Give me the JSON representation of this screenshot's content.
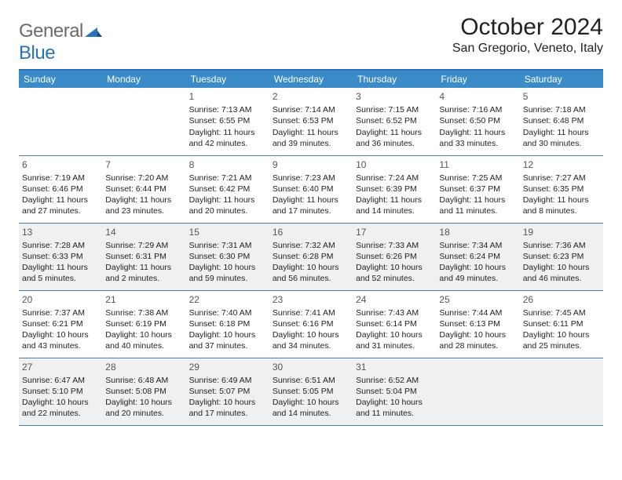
{
  "brand": {
    "part1": "General",
    "part2": "Blue",
    "color_gray": "#6b6b6b",
    "color_blue": "#2873b8"
  },
  "header": {
    "month_title": "October 2024",
    "location": "San Gregorio, Veneto, Italy"
  },
  "calendar": {
    "header_bg": "#3b8bc9",
    "header_fg": "#ffffff",
    "border_color": "#4a7fa8",
    "shaded_bg": "#eef0f2",
    "day_labels": [
      "Sunday",
      "Monday",
      "Tuesday",
      "Wednesday",
      "Thursday",
      "Friday",
      "Saturday"
    ],
    "weeks": [
      {
        "shaded": false,
        "days": [
          null,
          null,
          {
            "n": "1",
            "sr": "Sunrise: 7:13 AM",
            "ss": "Sunset: 6:55 PM",
            "dl": "Daylight: 11 hours and 42 minutes."
          },
          {
            "n": "2",
            "sr": "Sunrise: 7:14 AM",
            "ss": "Sunset: 6:53 PM",
            "dl": "Daylight: 11 hours and 39 minutes."
          },
          {
            "n": "3",
            "sr": "Sunrise: 7:15 AM",
            "ss": "Sunset: 6:52 PM",
            "dl": "Daylight: 11 hours and 36 minutes."
          },
          {
            "n": "4",
            "sr": "Sunrise: 7:16 AM",
            "ss": "Sunset: 6:50 PM",
            "dl": "Daylight: 11 hours and 33 minutes."
          },
          {
            "n": "5",
            "sr": "Sunrise: 7:18 AM",
            "ss": "Sunset: 6:48 PM",
            "dl": "Daylight: 11 hours and 30 minutes."
          }
        ]
      },
      {
        "shaded": false,
        "days": [
          {
            "n": "6",
            "sr": "Sunrise: 7:19 AM",
            "ss": "Sunset: 6:46 PM",
            "dl": "Daylight: 11 hours and 27 minutes."
          },
          {
            "n": "7",
            "sr": "Sunrise: 7:20 AM",
            "ss": "Sunset: 6:44 PM",
            "dl": "Daylight: 11 hours and 23 minutes."
          },
          {
            "n": "8",
            "sr": "Sunrise: 7:21 AM",
            "ss": "Sunset: 6:42 PM",
            "dl": "Daylight: 11 hours and 20 minutes."
          },
          {
            "n": "9",
            "sr": "Sunrise: 7:23 AM",
            "ss": "Sunset: 6:40 PM",
            "dl": "Daylight: 11 hours and 17 minutes."
          },
          {
            "n": "10",
            "sr": "Sunrise: 7:24 AM",
            "ss": "Sunset: 6:39 PM",
            "dl": "Daylight: 11 hours and 14 minutes."
          },
          {
            "n": "11",
            "sr": "Sunrise: 7:25 AM",
            "ss": "Sunset: 6:37 PM",
            "dl": "Daylight: 11 hours and 11 minutes."
          },
          {
            "n": "12",
            "sr": "Sunrise: 7:27 AM",
            "ss": "Sunset: 6:35 PM",
            "dl": "Daylight: 11 hours and 8 minutes."
          }
        ]
      },
      {
        "shaded": true,
        "days": [
          {
            "n": "13",
            "sr": "Sunrise: 7:28 AM",
            "ss": "Sunset: 6:33 PM",
            "dl": "Daylight: 11 hours and 5 minutes."
          },
          {
            "n": "14",
            "sr": "Sunrise: 7:29 AM",
            "ss": "Sunset: 6:31 PM",
            "dl": "Daylight: 11 hours and 2 minutes."
          },
          {
            "n": "15",
            "sr": "Sunrise: 7:31 AM",
            "ss": "Sunset: 6:30 PM",
            "dl": "Daylight: 10 hours and 59 minutes."
          },
          {
            "n": "16",
            "sr": "Sunrise: 7:32 AM",
            "ss": "Sunset: 6:28 PM",
            "dl": "Daylight: 10 hours and 56 minutes."
          },
          {
            "n": "17",
            "sr": "Sunrise: 7:33 AM",
            "ss": "Sunset: 6:26 PM",
            "dl": "Daylight: 10 hours and 52 minutes."
          },
          {
            "n": "18",
            "sr": "Sunrise: 7:34 AM",
            "ss": "Sunset: 6:24 PM",
            "dl": "Daylight: 10 hours and 49 minutes."
          },
          {
            "n": "19",
            "sr": "Sunrise: 7:36 AM",
            "ss": "Sunset: 6:23 PM",
            "dl": "Daylight: 10 hours and 46 minutes."
          }
        ]
      },
      {
        "shaded": false,
        "days": [
          {
            "n": "20",
            "sr": "Sunrise: 7:37 AM",
            "ss": "Sunset: 6:21 PM",
            "dl": "Daylight: 10 hours and 43 minutes."
          },
          {
            "n": "21",
            "sr": "Sunrise: 7:38 AM",
            "ss": "Sunset: 6:19 PM",
            "dl": "Daylight: 10 hours and 40 minutes."
          },
          {
            "n": "22",
            "sr": "Sunrise: 7:40 AM",
            "ss": "Sunset: 6:18 PM",
            "dl": "Daylight: 10 hours and 37 minutes."
          },
          {
            "n": "23",
            "sr": "Sunrise: 7:41 AM",
            "ss": "Sunset: 6:16 PM",
            "dl": "Daylight: 10 hours and 34 minutes."
          },
          {
            "n": "24",
            "sr": "Sunrise: 7:43 AM",
            "ss": "Sunset: 6:14 PM",
            "dl": "Daylight: 10 hours and 31 minutes."
          },
          {
            "n": "25",
            "sr": "Sunrise: 7:44 AM",
            "ss": "Sunset: 6:13 PM",
            "dl": "Daylight: 10 hours and 28 minutes."
          },
          {
            "n": "26",
            "sr": "Sunrise: 7:45 AM",
            "ss": "Sunset: 6:11 PM",
            "dl": "Daylight: 10 hours and 25 minutes."
          }
        ]
      },
      {
        "shaded": true,
        "days": [
          {
            "n": "27",
            "sr": "Sunrise: 6:47 AM",
            "ss": "Sunset: 5:10 PM",
            "dl": "Daylight: 10 hours and 22 minutes."
          },
          {
            "n": "28",
            "sr": "Sunrise: 6:48 AM",
            "ss": "Sunset: 5:08 PM",
            "dl": "Daylight: 10 hours and 20 minutes."
          },
          {
            "n": "29",
            "sr": "Sunrise: 6:49 AM",
            "ss": "Sunset: 5:07 PM",
            "dl": "Daylight: 10 hours and 17 minutes."
          },
          {
            "n": "30",
            "sr": "Sunrise: 6:51 AM",
            "ss": "Sunset: 5:05 PM",
            "dl": "Daylight: 10 hours and 14 minutes."
          },
          {
            "n": "31",
            "sr": "Sunrise: 6:52 AM",
            "ss": "Sunset: 5:04 PM",
            "dl": "Daylight: 10 hours and 11 minutes."
          },
          null,
          null
        ]
      }
    ]
  }
}
